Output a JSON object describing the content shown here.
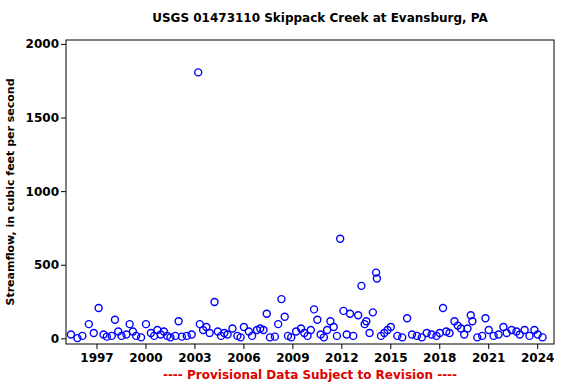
{
  "chart_data": {
    "type": "scatter",
    "title": "USGS 01473110 Skippack Creek at Evansburg, PA",
    "y_label": "Streamflow, in cubic feet per second",
    "footer": "---- Provisional Data Subject to Revision ----",
    "marker": "open-circle",
    "color": "#0000ff",
    "grid": false,
    "xlim": [
      1995.1,
      2025.0
    ],
    "xticks": [
      1997,
      2000,
      2003,
      2006,
      2009,
      2012,
      2015,
      2018,
      2021,
      2024
    ],
    "ylim": [
      -35,
      2030
    ],
    "yticks": [
      0,
      500,
      1000,
      1500,
      2000
    ],
    "x": [
      1995.4,
      1995.8,
      1996.1,
      1996.5,
      1996.8,
      1997.1,
      1997.4,
      1997.6,
      1997.9,
      1998.1,
      1998.3,
      1998.5,
      1998.8,
      1999.0,
      1999.2,
      1999.4,
      1999.7,
      2000.0,
      2000.3,
      2000.5,
      2000.7,
      2000.9,
      2001.1,
      2001.3,
      2001.5,
      2001.8,
      2002.0,
      2002.2,
      2002.5,
      2002.8,
      2003.2,
      2003.3,
      2003.5,
      2003.7,
      2003.9,
      2004.2,
      2004.4,
      2004.6,
      2004.8,
      2005.0,
      2005.3,
      2005.6,
      2005.8,
      2006.0,
      2006.3,
      2006.5,
      2006.8,
      2007.0,
      2007.2,
      2007.4,
      2007.6,
      2007.9,
      2008.1,
      2008.3,
      2008.5,
      2008.7,
      2008.9,
      2009.2,
      2009.5,
      2009.7,
      2009.9,
      2010.1,
      2010.3,
      2010.5,
      2010.7,
      2010.9,
      2011.1,
      2011.3,
      2011.5,
      2011.7,
      2011.9,
      2012.1,
      2012.3,
      2012.5,
      2012.7,
      2013.0,
      2013.2,
      2013.4,
      2013.5,
      2013.7,
      2013.9,
      2014.1,
      2014.15,
      2014.4,
      2014.6,
      2014.8,
      2015.0,
      2015.4,
      2015.7,
      2016.0,
      2016.3,
      2016.6,
      2016.9,
      2017.2,
      2017.5,
      2017.8,
      2018.0,
      2018.2,
      2018.4,
      2018.6,
      2018.9,
      2019.1,
      2019.3,
      2019.5,
      2019.7,
      2019.9,
      2020.0,
      2020.3,
      2020.6,
      2020.8,
      2021.0,
      2021.3,
      2021.6,
      2021.9,
      2022.1,
      2022.4,
      2022.7,
      2022.9,
      2023.2,
      2023.5,
      2023.8,
      2024.0,
      2024.3
    ],
    "values": [
      30,
      5,
      20,
      100,
      40,
      210,
      30,
      15,
      20,
      130,
      50,
      20,
      30,
      100,
      50,
      20,
      10,
      100,
      40,
      20,
      60,
      30,
      50,
      20,
      10,
      20,
      120,
      15,
      20,
      30,
      1810,
      100,
      60,
      80,
      40,
      250,
      50,
      20,
      40,
      30,
      70,
      20,
      10,
      80,
      50,
      20,
      60,
      70,
      60,
      170,
      10,
      15,
      100,
      270,
      150,
      20,
      10,
      50,
      70,
      40,
      20,
      60,
      200,
      130,
      30,
      10,
      60,
      120,
      80,
      20,
      680,
      190,
      30,
      170,
      20,
      160,
      360,
      100,
      120,
      40,
      180,
      450,
      410,
      20,
      40,
      60,
      80,
      20,
      10,
      140,
      30,
      20,
      10,
      40,
      30,
      20,
      40,
      210,
      50,
      40,
      120,
      90,
      70,
      30,
      70,
      160,
      120,
      10,
      20,
      140,
      60,
      20,
      30,
      80,
      40,
      60,
      50,
      30,
      60,
      20,
      60,
      30,
      10
    ]
  }
}
